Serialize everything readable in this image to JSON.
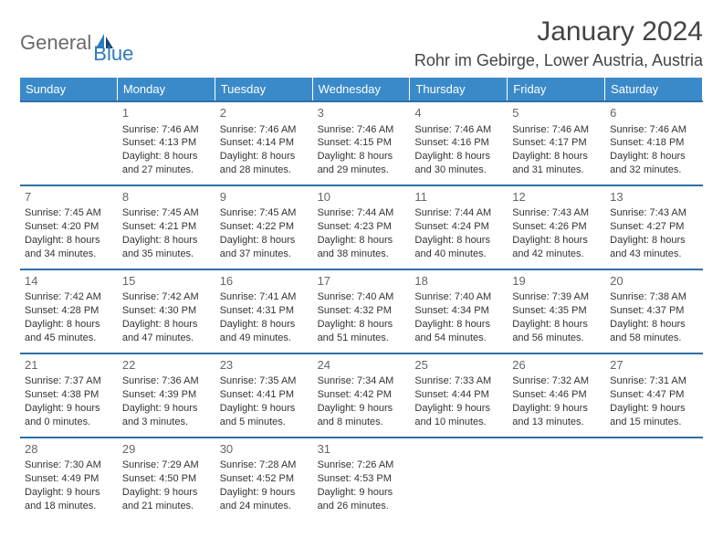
{
  "logo": {
    "text1": "General",
    "text2": "Blue"
  },
  "title": "January 2024",
  "location": "Rohr im Gebirge, Lower Austria, Austria",
  "colors": {
    "header_bg": "#3a8aca",
    "border": "#2f6fa6",
    "text": "#333333",
    "daynum": "#666666"
  },
  "daysOfWeek": [
    "Sunday",
    "Monday",
    "Tuesday",
    "Wednesday",
    "Thursday",
    "Friday",
    "Saturday"
  ],
  "startOffset": 1,
  "days": [
    {
      "n": "1",
      "sunrise": "Sunrise: 7:46 AM",
      "sunset": "Sunset: 4:13 PM",
      "d1": "Daylight: 8 hours",
      "d2": "and 27 minutes."
    },
    {
      "n": "2",
      "sunrise": "Sunrise: 7:46 AM",
      "sunset": "Sunset: 4:14 PM",
      "d1": "Daylight: 8 hours",
      "d2": "and 28 minutes."
    },
    {
      "n": "3",
      "sunrise": "Sunrise: 7:46 AM",
      "sunset": "Sunset: 4:15 PM",
      "d1": "Daylight: 8 hours",
      "d2": "and 29 minutes."
    },
    {
      "n": "4",
      "sunrise": "Sunrise: 7:46 AM",
      "sunset": "Sunset: 4:16 PM",
      "d1": "Daylight: 8 hours",
      "d2": "and 30 minutes."
    },
    {
      "n": "5",
      "sunrise": "Sunrise: 7:46 AM",
      "sunset": "Sunset: 4:17 PM",
      "d1": "Daylight: 8 hours",
      "d2": "and 31 minutes."
    },
    {
      "n": "6",
      "sunrise": "Sunrise: 7:46 AM",
      "sunset": "Sunset: 4:18 PM",
      "d1": "Daylight: 8 hours",
      "d2": "and 32 minutes."
    },
    {
      "n": "7",
      "sunrise": "Sunrise: 7:45 AM",
      "sunset": "Sunset: 4:20 PM",
      "d1": "Daylight: 8 hours",
      "d2": "and 34 minutes."
    },
    {
      "n": "8",
      "sunrise": "Sunrise: 7:45 AM",
      "sunset": "Sunset: 4:21 PM",
      "d1": "Daylight: 8 hours",
      "d2": "and 35 minutes."
    },
    {
      "n": "9",
      "sunrise": "Sunrise: 7:45 AM",
      "sunset": "Sunset: 4:22 PM",
      "d1": "Daylight: 8 hours",
      "d2": "and 37 minutes."
    },
    {
      "n": "10",
      "sunrise": "Sunrise: 7:44 AM",
      "sunset": "Sunset: 4:23 PM",
      "d1": "Daylight: 8 hours",
      "d2": "and 38 minutes."
    },
    {
      "n": "11",
      "sunrise": "Sunrise: 7:44 AM",
      "sunset": "Sunset: 4:24 PM",
      "d1": "Daylight: 8 hours",
      "d2": "and 40 minutes."
    },
    {
      "n": "12",
      "sunrise": "Sunrise: 7:43 AM",
      "sunset": "Sunset: 4:26 PM",
      "d1": "Daylight: 8 hours",
      "d2": "and 42 minutes."
    },
    {
      "n": "13",
      "sunrise": "Sunrise: 7:43 AM",
      "sunset": "Sunset: 4:27 PM",
      "d1": "Daylight: 8 hours",
      "d2": "and 43 minutes."
    },
    {
      "n": "14",
      "sunrise": "Sunrise: 7:42 AM",
      "sunset": "Sunset: 4:28 PM",
      "d1": "Daylight: 8 hours",
      "d2": "and 45 minutes."
    },
    {
      "n": "15",
      "sunrise": "Sunrise: 7:42 AM",
      "sunset": "Sunset: 4:30 PM",
      "d1": "Daylight: 8 hours",
      "d2": "and 47 minutes."
    },
    {
      "n": "16",
      "sunrise": "Sunrise: 7:41 AM",
      "sunset": "Sunset: 4:31 PM",
      "d1": "Daylight: 8 hours",
      "d2": "and 49 minutes."
    },
    {
      "n": "17",
      "sunrise": "Sunrise: 7:40 AM",
      "sunset": "Sunset: 4:32 PM",
      "d1": "Daylight: 8 hours",
      "d2": "and 51 minutes."
    },
    {
      "n": "18",
      "sunrise": "Sunrise: 7:40 AM",
      "sunset": "Sunset: 4:34 PM",
      "d1": "Daylight: 8 hours",
      "d2": "and 54 minutes."
    },
    {
      "n": "19",
      "sunrise": "Sunrise: 7:39 AM",
      "sunset": "Sunset: 4:35 PM",
      "d1": "Daylight: 8 hours",
      "d2": "and 56 minutes."
    },
    {
      "n": "20",
      "sunrise": "Sunrise: 7:38 AM",
      "sunset": "Sunset: 4:37 PM",
      "d1": "Daylight: 8 hours",
      "d2": "and 58 minutes."
    },
    {
      "n": "21",
      "sunrise": "Sunrise: 7:37 AM",
      "sunset": "Sunset: 4:38 PM",
      "d1": "Daylight: 9 hours",
      "d2": "and 0 minutes."
    },
    {
      "n": "22",
      "sunrise": "Sunrise: 7:36 AM",
      "sunset": "Sunset: 4:39 PM",
      "d1": "Daylight: 9 hours",
      "d2": "and 3 minutes."
    },
    {
      "n": "23",
      "sunrise": "Sunrise: 7:35 AM",
      "sunset": "Sunset: 4:41 PM",
      "d1": "Daylight: 9 hours",
      "d2": "and 5 minutes."
    },
    {
      "n": "24",
      "sunrise": "Sunrise: 7:34 AM",
      "sunset": "Sunset: 4:42 PM",
      "d1": "Daylight: 9 hours",
      "d2": "and 8 minutes."
    },
    {
      "n": "25",
      "sunrise": "Sunrise: 7:33 AM",
      "sunset": "Sunset: 4:44 PM",
      "d1": "Daylight: 9 hours",
      "d2": "and 10 minutes."
    },
    {
      "n": "26",
      "sunrise": "Sunrise: 7:32 AM",
      "sunset": "Sunset: 4:46 PM",
      "d1": "Daylight: 9 hours",
      "d2": "and 13 minutes."
    },
    {
      "n": "27",
      "sunrise": "Sunrise: 7:31 AM",
      "sunset": "Sunset: 4:47 PM",
      "d1": "Daylight: 9 hours",
      "d2": "and 15 minutes."
    },
    {
      "n": "28",
      "sunrise": "Sunrise: 7:30 AM",
      "sunset": "Sunset: 4:49 PM",
      "d1": "Daylight: 9 hours",
      "d2": "and 18 minutes."
    },
    {
      "n": "29",
      "sunrise": "Sunrise: 7:29 AM",
      "sunset": "Sunset: 4:50 PM",
      "d1": "Daylight: 9 hours",
      "d2": "and 21 minutes."
    },
    {
      "n": "30",
      "sunrise": "Sunrise: 7:28 AM",
      "sunset": "Sunset: 4:52 PM",
      "d1": "Daylight: 9 hours",
      "d2": "and 24 minutes."
    },
    {
      "n": "31",
      "sunrise": "Sunrise: 7:26 AM",
      "sunset": "Sunset: 4:53 PM",
      "d1": "Daylight: 9 hours",
      "d2": "and 26 minutes."
    }
  ]
}
